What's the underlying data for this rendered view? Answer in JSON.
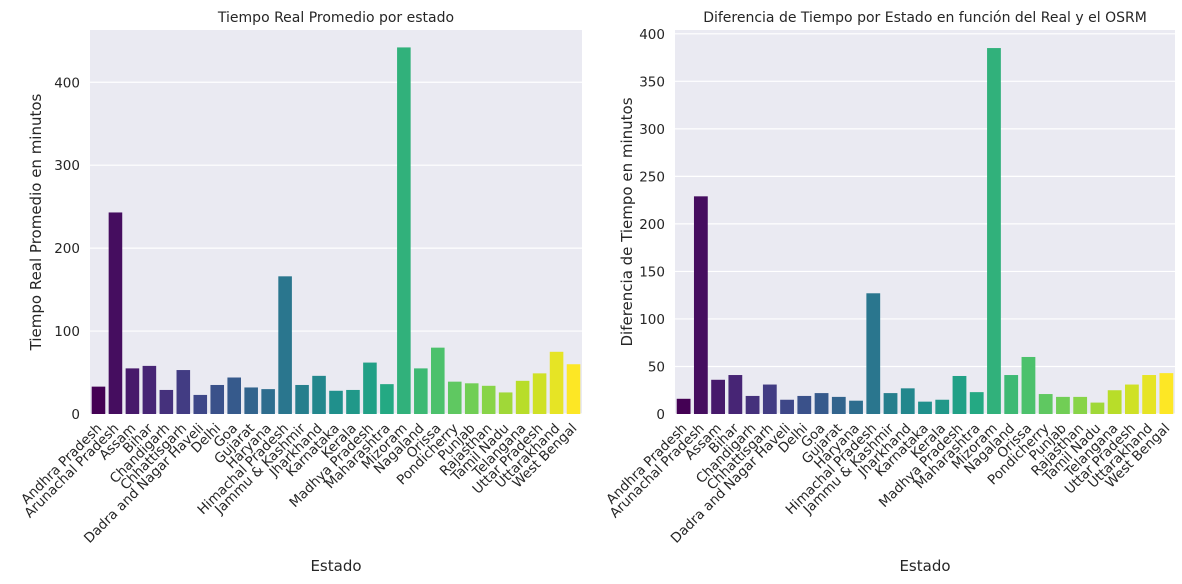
{
  "chart_data": [
    {
      "type": "bar",
      "title": "Tiempo Real Promedio por estado",
      "xlabel": "Estado",
      "ylabel": "Tiempo Real Promedio en minutos",
      "ylim": [
        0,
        463
      ],
      "yticks": [
        0,
        100,
        200,
        300,
        400
      ],
      "grid": true,
      "legend": "none",
      "palette": "viridis",
      "categories": [
        "Andhra Pradesh",
        "Arunachal Pradesh",
        "Assam",
        "Bihar",
        "Chandigarh",
        "Chhattisgarh",
        "Dadra and Nagar Haveli",
        "Delhi",
        "Goa",
        "Gujarat",
        "Haryana",
        "Himachal Pradesh",
        "Jammu & Kashmir",
        "Jharkhand",
        "Karnataka",
        "Kerala",
        "Madhya Pradesh",
        "Maharashtra",
        "Mizoram",
        "Nagaland",
        "Orissa",
        "Pondicherry",
        "Punjab",
        "Rajasthan",
        "Tamil Nadu",
        "Telangana",
        "Uttar Pradesh",
        "Uttarakhand",
        "West Bengal"
      ],
      "values": [
        33,
        243,
        55,
        58,
        29,
        53,
        23,
        35,
        44,
        32,
        30,
        166,
        35,
        46,
        28,
        29,
        62,
        36,
        442,
        55,
        80,
        39,
        37,
        34,
        26,
        40,
        49,
        75,
        60
      ]
    },
    {
      "type": "bar",
      "title": "Diferencia de Tiempo por Estado en función del Real y el OSRM",
      "xlabel": "Estado",
      "ylabel": "Diferencia de Tiempo en minutos",
      "ylim": [
        0,
        404
      ],
      "yticks": [
        0,
        50,
        100,
        150,
        200,
        250,
        300,
        350,
        400
      ],
      "grid": true,
      "legend": "none",
      "palette": "viridis",
      "categories": [
        "Andhra Pradesh",
        "Arunachal Pradesh",
        "Assam",
        "Bihar",
        "Chandigarh",
        "Chhattisgarh",
        "Dadra and Nagar Haveli",
        "Delhi",
        "Goa",
        "Gujarat",
        "Haryana",
        "Himachal Pradesh",
        "Jammu & Kashmir",
        "Jharkhand",
        "Karnataka",
        "Kerala",
        "Madhya Pradesh",
        "Maharashtra",
        "Mizoram",
        "Nagaland",
        "Orissa",
        "Pondicherry",
        "Punjab",
        "Rajasthan",
        "Tamil Nadu",
        "Telangana",
        "Uttar Pradesh",
        "Uttarakhand",
        "West Bengal"
      ],
      "values": [
        16,
        229,
        36,
        41,
        19,
        31,
        15,
        19,
        22,
        18,
        14,
        127,
        22,
        27,
        13,
        15,
        40,
        23,
        385,
        41,
        60,
        21,
        18,
        18,
        12,
        25,
        31,
        41,
        43
      ]
    }
  ]
}
